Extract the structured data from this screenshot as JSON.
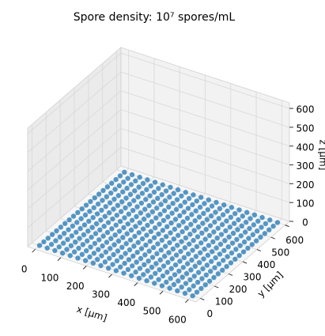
{
  "chart_data": {
    "type": "scatter3d",
    "title": "Spore density: 10⁷ spores/mL",
    "xlabel": "x [μm]",
    "ylabel": "y [μm]",
    "zlabel": "z [μm]",
    "color": "#1f77b4",
    "xlim": [
      -30,
      630
    ],
    "ylim": [
      -30,
      630
    ],
    "zlim": [
      0,
      630
    ],
    "xticks": [
      0,
      100,
      200,
      300,
      400,
      500,
      600
    ],
    "yticks": [
      0,
      100,
      200,
      300,
      400,
      500,
      600
    ],
    "zticks": [
      0,
      100,
      200,
      300,
      400,
      500,
      600
    ],
    "grid": true,
    "x": [
      0,
      30,
      60,
      90,
      120,
      150,
      180,
      210,
      240,
      270,
      300,
      330,
      360,
      390,
      420,
      450,
      480,
      510,
      540,
      570,
      600
    ],
    "y": [
      0,
      30,
      60,
      90,
      120,
      150,
      180,
      210,
      240,
      270,
      300,
      330,
      360,
      390,
      420,
      450,
      480,
      510,
      540,
      570,
      600
    ],
    "z": [
      [
        0,
        0,
        0,
        0,
        0,
        0,
        0,
        0,
        0,
        0,
        0,
        0,
        0,
        0,
        0,
        0,
        0,
        0,
        0,
        0,
        0
      ],
      [
        0,
        0,
        0,
        0,
        0,
        0,
        0,
        0,
        0,
        0,
        0,
        0,
        0,
        0,
        0,
        0,
        0,
        0,
        0,
        0,
        0
      ],
      [
        0,
        0,
        0,
        0,
        0,
        0,
        0,
        0,
        0,
        0,
        0,
        0,
        0,
        0,
        0,
        0,
        0,
        0,
        0,
        0,
        0
      ],
      [
        0,
        0,
        0,
        0,
        0,
        0,
        0,
        0,
        0,
        0,
        0,
        0,
        0,
        0,
        0,
        0,
        0,
        0,
        0,
        0,
        0
      ],
      [
        0,
        0,
        0,
        0,
        0,
        0,
        0,
        0,
        0,
        0,
        0,
        0,
        0,
        0,
        0,
        0,
        0,
        0,
        0,
        0,
        0
      ],
      [
        0,
        0,
        0,
        0,
        0,
        0,
        0,
        0,
        0,
        0,
        0,
        0,
        0,
        0,
        0,
        0,
        0,
        0,
        0,
        0,
        0
      ],
      [
        0,
        0,
        0,
        0,
        0,
        0,
        0,
        0,
        0,
        0,
        0,
        0,
        0,
        0,
        0,
        0,
        0,
        0,
        0,
        0,
        0
      ],
      [
        0,
        0,
        0,
        0,
        0,
        0,
        0,
        0,
        0,
        0,
        0,
        0,
        0,
        0,
        0,
        0,
        0,
        0,
        0,
        0,
        0
      ],
      [
        0,
        0,
        0,
        0,
        0,
        0,
        0,
        0,
        0,
        0,
        0,
        0,
        0,
        0,
        0,
        0,
        0,
        0,
        0,
        0,
        0
      ],
      [
        0,
        0,
        0,
        0,
        0,
        0,
        0,
        0,
        0,
        0,
        0,
        0,
        0,
        0,
        0,
        0,
        0,
        0,
        0,
        0,
        0
      ],
      [
        0,
        0,
        0,
        0,
        0,
        0,
        0,
        0,
        0,
        0,
        0,
        0,
        0,
        0,
        0,
        0,
        0,
        0,
        0,
        0,
        0
      ],
      [
        0,
        0,
        0,
        0,
        0,
        0,
        0,
        0,
        0,
        0,
        0,
        0,
        0,
        0,
        0,
        0,
        0,
        0,
        0,
        0,
        0
      ],
      [
        0,
        0,
        0,
        0,
        0,
        0,
        0,
        0,
        0,
        0,
        0,
        0,
        0,
        0,
        0,
        0,
        0,
        0,
        0,
        0,
        0
      ],
      [
        0,
        0,
        0,
        0,
        0,
        0,
        0,
        0,
        0,
        0,
        0,
        0,
        0,
        0,
        0,
        0,
        0,
        0,
        0,
        0,
        0
      ],
      [
        0,
        0,
        0,
        0,
        0,
        0,
        0,
        0,
        0,
        0,
        0,
        0,
        0,
        0,
        0,
        0,
        0,
        0,
        0,
        0,
        0
      ],
      [
        0,
        0,
        0,
        0,
        0,
        0,
        0,
        0,
        0,
        0,
        0,
        0,
        0,
        0,
        0,
        0,
        0,
        0,
        0,
        0,
        0
      ],
      [
        0,
        0,
        0,
        0,
        0,
        0,
        0,
        0,
        0,
        0,
        0,
        0,
        0,
        0,
        0,
        0,
        0,
        0,
        0,
        0,
        0
      ],
      [
        0,
        0,
        0,
        0,
        0,
        0,
        0,
        0,
        0,
        0,
        0,
        0,
        0,
        0,
        0,
        0,
        0,
        0,
        0,
        0,
        0
      ],
      [
        0,
        0,
        0,
        0,
        0,
        0,
        0,
        0,
        0,
        0,
        0,
        0,
        0,
        0,
        0,
        0,
        0,
        0,
        0,
        0,
        0
      ],
      [
        0,
        0,
        0,
        0,
        0,
        0,
        0,
        0,
        0,
        0,
        0,
        0,
        0,
        0,
        0,
        0,
        0,
        0,
        0,
        0,
        0
      ],
      [
        0,
        0,
        0,
        0,
        0,
        0,
        0,
        0,
        0,
        0,
        0,
        0,
        0,
        0,
        0,
        0,
        0,
        0,
        0,
        0,
        0
      ]
    ]
  }
}
